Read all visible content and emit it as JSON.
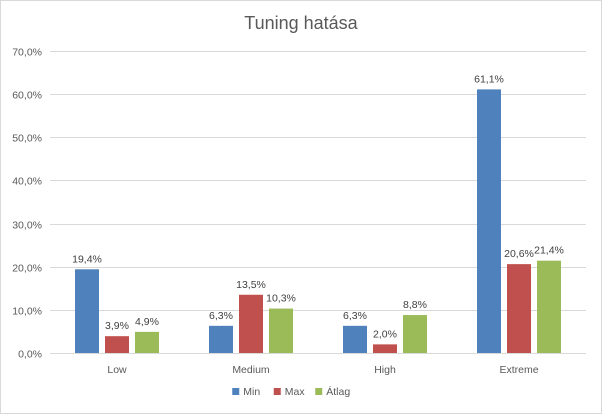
{
  "chart_data": {
    "type": "bar",
    "title": "Tuning hatása",
    "xlabel": "",
    "ylabel": "",
    "categories": [
      "Low",
      "Medium",
      "High",
      "Extreme"
    ],
    "series": [
      {
        "name": "Min",
        "color": "#4f81bd",
        "values": [
          19.4,
          6.3,
          6.3,
          61.1
        ],
        "labels": [
          "19,4%",
          "6,3%",
          "6,3%",
          "61,1%"
        ]
      },
      {
        "name": "Max",
        "color": "#c0504d",
        "values": [
          3.9,
          13.5,
          2.0,
          20.6
        ],
        "labels": [
          "3,9%",
          "13,5%",
          "2,0%",
          "20,6%"
        ]
      },
      {
        "name": "Átlag",
        "color": "#9bbb59",
        "values": [
          4.9,
          10.3,
          8.8,
          21.4
        ],
        "labels": [
          "4,9%",
          "10,3%",
          "8,8%",
          "21,4%"
        ]
      }
    ],
    "ylim": [
      0,
      70
    ],
    "yticks": [
      0,
      10,
      20,
      30,
      40,
      50,
      60,
      70
    ],
    "ytick_labels": [
      "0,0%",
      "10,0%",
      "20,0%",
      "30,0%",
      "40,0%",
      "50,0%",
      "60,0%",
      "70,0%"
    ],
    "grid": true,
    "legend_position": "bottom"
  }
}
